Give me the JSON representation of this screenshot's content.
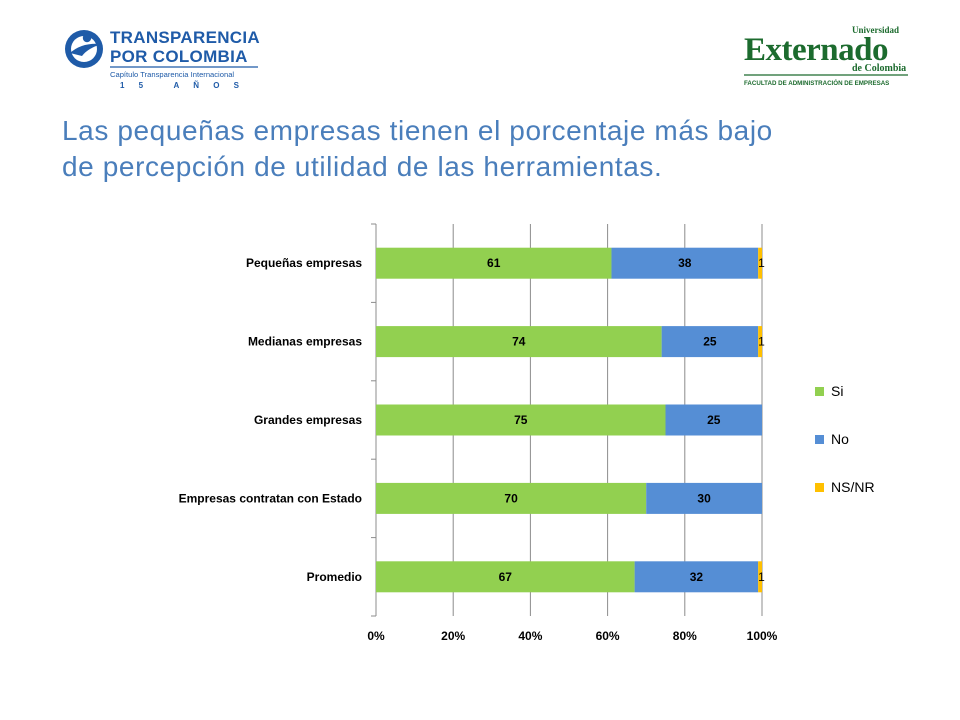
{
  "logos": {
    "left": {
      "line1": "TRANSPARENCIA",
      "line2": "POR COLOMBIA",
      "line3": "Capítulo Transparencia Internacional",
      "line4": "1 5   A Ñ O S",
      "color": "#1f5ba8"
    },
    "right": {
      "line1": "Universidad",
      "line2": "Externado",
      "line3": "de Colombia",
      "line4": "FACULTAD DE ADMINISTRACIÓN DE EMPRESAS",
      "color": "#1c6b2e"
    }
  },
  "title": {
    "line1": "Las pequeñas empresas tienen el porcentaje más bajo",
    "line2": "de percepción de utilidad de las herramientas.",
    "color": "#4a7ebb"
  },
  "chart_data": {
    "type": "bar",
    "orientation": "horizontal",
    "stacked": "percent",
    "categories": [
      "Pequeñas empresas",
      "Medianas empresas",
      "Grandes empresas",
      "Empresas contratan con Estado",
      "Promedio"
    ],
    "series": [
      {
        "name": "Si",
        "color": "#92d050",
        "values": [
          61,
          74,
          75,
          70,
          67
        ],
        "labels": [
          "61",
          "74",
          "75",
          "70",
          "67"
        ]
      },
      {
        "name": "No",
        "color": "#558ed5",
        "values": [
          38,
          25,
          25,
          30,
          32
        ],
        "labels": [
          "38",
          "25",
          "25",
          "30",
          "32"
        ]
      },
      {
        "name": "NS/NR",
        "color": "#ffc000",
        "values": [
          1,
          1,
          0,
          0,
          1
        ],
        "labels": [
          "1",
          "1",
          "",
          "",
          "1"
        ]
      }
    ],
    "xlim": [
      0,
      100
    ],
    "x_ticks": [
      "0%",
      "20%",
      "40%",
      "60%",
      "80%",
      "100%"
    ],
    "grid": "vertical",
    "legend": "right"
  }
}
